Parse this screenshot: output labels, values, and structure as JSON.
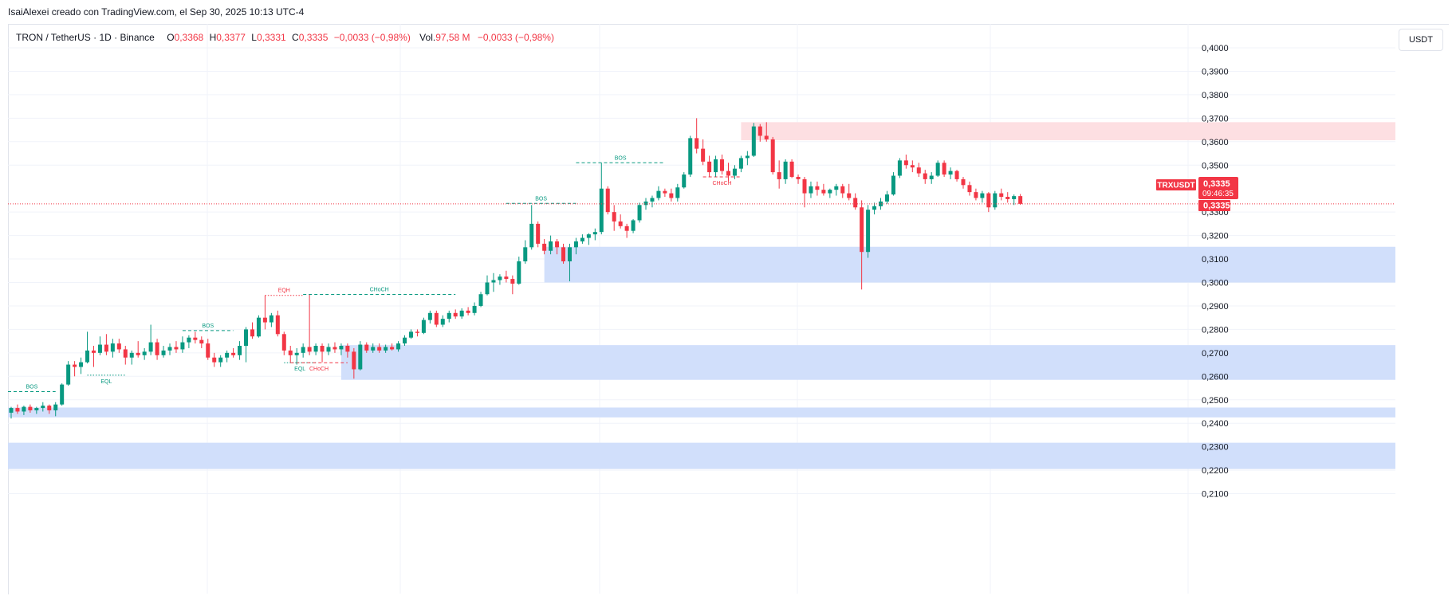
{
  "header": {
    "attribution": "IsaiAlexei creado con TradingView.com, el Sep 30, 2025 10:13 UTC-4"
  },
  "legend": {
    "symbol": "TRON / TetherUS · 1D · Binance",
    "o_label": "O",
    "o_value": "0,3368",
    "h_label": "H",
    "h_value": "0,3377",
    "l_label": "L",
    "l_value": "0,3331",
    "c_label": "C",
    "c_value": "0,3335",
    "change": "−0,0033 (−0,98%)",
    "vol_label": "Vol.",
    "vol_value": "97,58 M",
    "vol_change": "−0,0033 (−0,98%)"
  },
  "unit_label": "USDT",
  "price_tags": {
    "symbol": "TRXUSDT",
    "price": "0,3335",
    "countdown": "09:46:35",
    "last_price": "0,3335"
  },
  "colors": {
    "up": "#089981",
    "down": "#f23645",
    "demand_zone": "#d1dffb",
    "supply_zone": "#fddfe2",
    "grid": "#f0f3fa"
  },
  "chart_data": {
    "type": "candlestick",
    "symbol": "TRXUSDT",
    "interval": "1D",
    "y_ticks": [
      "0,4000",
      "0,3900",
      "0,3800",
      "0,3700",
      "0,3600",
      "0,3500",
      "0,3300",
      "0,3200",
      "0,3100",
      "0,3000",
      "0,2900",
      "0,2800",
      "0,2700",
      "0,2600",
      "0,2500",
      "0,2400",
      "0,2300",
      "0,2200",
      "0,2100"
    ],
    "ylim": [
      0.2065,
      0.4025
    ],
    "last_price": 0.3335,
    "zones": [
      {
        "kind": "supply",
        "top": 0.3683,
        "bottom": 0.3606,
        "from_index": 115
      },
      {
        "kind": "demand",
        "top": 0.3152,
        "bottom": 0.3,
        "from_index": 84
      },
      {
        "kind": "demand",
        "top": 0.2733,
        "bottom": 0.2585,
        "from_index": 52
      },
      {
        "kind": "demand",
        "top": 0.2467,
        "bottom": 0.2425,
        "from_index": 0
      },
      {
        "kind": "demand",
        "top": 0.2317,
        "bottom": 0.2205,
        "from_index": 0
      }
    ],
    "structures": [
      {
        "label": "BOS",
        "type": "bos",
        "price": 0.2535,
        "from_index": 0,
        "to_index": 7,
        "color": "#089981"
      },
      {
        "label": "EQL",
        "type": "eq",
        "price": 0.2605,
        "from_index": 12,
        "to_index": 18,
        "color": "#089981"
      },
      {
        "label": "BOS",
        "type": "bos",
        "price": 0.2795,
        "from_index": 27,
        "to_index": 35,
        "color": "#089981"
      },
      {
        "label": "EQH",
        "type": "eq",
        "price": 0.2945,
        "from_index": 40,
        "to_index": 46,
        "color": "#f23645"
      },
      {
        "label": "EQL",
        "type": "eq",
        "price": 0.2658,
        "from_index": 43,
        "to_index": 48,
        "color": "#089981"
      },
      {
        "label": "CHoCH",
        "type": "choch",
        "price": 0.2658,
        "from_index": 44,
        "to_index": 53,
        "color": "#f23645"
      },
      {
        "label": "CHoCH",
        "type": "choch",
        "price": 0.2949,
        "from_index": 46,
        "to_index": 70,
        "color": "#089981"
      },
      {
        "label": "BOS",
        "type": "bos",
        "price": 0.3337,
        "from_index": 78,
        "to_index": 89,
        "color": "#089981"
      },
      {
        "label": "BOS",
        "type": "bos",
        "price": 0.351,
        "from_index": 89,
        "to_index": 103,
        "color": "#089981"
      },
      {
        "label": "CHoCH",
        "type": "choch",
        "price": 0.345,
        "from_index": 109,
        "to_index": 115,
        "color": "#f23645"
      }
    ],
    "candles": [
      {
        "o": 0.2445,
        "h": 0.247,
        "l": 0.242,
        "c": 0.2465
      },
      {
        "o": 0.2465,
        "h": 0.248,
        "l": 0.244,
        "c": 0.245
      },
      {
        "o": 0.245,
        "h": 0.2475,
        "l": 0.2435,
        "c": 0.247
      },
      {
        "o": 0.247,
        "h": 0.248,
        "l": 0.2445,
        "c": 0.2455
      },
      {
        "o": 0.2455,
        "h": 0.247,
        "l": 0.244,
        "c": 0.2465
      },
      {
        "o": 0.2465,
        "h": 0.249,
        "l": 0.245,
        "c": 0.2475
      },
      {
        "o": 0.2475,
        "h": 0.248,
        "l": 0.244,
        "c": 0.2455
      },
      {
        "o": 0.2455,
        "h": 0.249,
        "l": 0.243,
        "c": 0.248
      },
      {
        "o": 0.248,
        "h": 0.257,
        "l": 0.2475,
        "c": 0.2565
      },
      {
        "o": 0.2565,
        "h": 0.2665,
        "l": 0.256,
        "c": 0.265
      },
      {
        "o": 0.265,
        "h": 0.2665,
        "l": 0.26,
        "c": 0.264
      },
      {
        "o": 0.264,
        "h": 0.268,
        "l": 0.261,
        "c": 0.266
      },
      {
        "o": 0.266,
        "h": 0.279,
        "l": 0.2655,
        "c": 0.271
      },
      {
        "o": 0.271,
        "h": 0.273,
        "l": 0.264,
        "c": 0.27
      },
      {
        "o": 0.27,
        "h": 0.277,
        "l": 0.269,
        "c": 0.2735
      },
      {
        "o": 0.2735,
        "h": 0.278,
        "l": 0.269,
        "c": 0.2705
      },
      {
        "o": 0.2705,
        "h": 0.276,
        "l": 0.268,
        "c": 0.274
      },
      {
        "o": 0.274,
        "h": 0.276,
        "l": 0.27,
        "c": 0.2715
      },
      {
        "o": 0.2715,
        "h": 0.273,
        "l": 0.265,
        "c": 0.268
      },
      {
        "o": 0.268,
        "h": 0.271,
        "l": 0.265,
        "c": 0.27
      },
      {
        "o": 0.27,
        "h": 0.275,
        "l": 0.268,
        "c": 0.269
      },
      {
        "o": 0.269,
        "h": 0.272,
        "l": 0.267,
        "c": 0.2705
      },
      {
        "o": 0.2705,
        "h": 0.282,
        "l": 0.269,
        "c": 0.2745
      },
      {
        "o": 0.2745,
        "h": 0.276,
        "l": 0.267,
        "c": 0.269
      },
      {
        "o": 0.269,
        "h": 0.273,
        "l": 0.268,
        "c": 0.271
      },
      {
        "o": 0.271,
        "h": 0.274,
        "l": 0.269,
        "c": 0.2725
      },
      {
        "o": 0.2725,
        "h": 0.275,
        "l": 0.27,
        "c": 0.2715
      },
      {
        "o": 0.2715,
        "h": 0.277,
        "l": 0.27,
        "c": 0.2745
      },
      {
        "o": 0.2745,
        "h": 0.2775,
        "l": 0.272,
        "c": 0.2765
      },
      {
        "o": 0.2765,
        "h": 0.279,
        "l": 0.274,
        "c": 0.2755
      },
      {
        "o": 0.2755,
        "h": 0.277,
        "l": 0.272,
        "c": 0.274
      },
      {
        "o": 0.274,
        "h": 0.276,
        "l": 0.267,
        "c": 0.268
      },
      {
        "o": 0.268,
        "h": 0.27,
        "l": 0.264,
        "c": 0.266
      },
      {
        "o": 0.266,
        "h": 0.269,
        "l": 0.264,
        "c": 0.268
      },
      {
        "o": 0.268,
        "h": 0.271,
        "l": 0.266,
        "c": 0.27
      },
      {
        "o": 0.27,
        "h": 0.272,
        "l": 0.268,
        "c": 0.269
      },
      {
        "o": 0.269,
        "h": 0.275,
        "l": 0.267,
        "c": 0.273
      },
      {
        "o": 0.273,
        "h": 0.281,
        "l": 0.266,
        "c": 0.28
      },
      {
        "o": 0.28,
        "h": 0.283,
        "l": 0.276,
        "c": 0.277
      },
      {
        "o": 0.277,
        "h": 0.286,
        "l": 0.2765,
        "c": 0.285
      },
      {
        "o": 0.285,
        "h": 0.2945,
        "l": 0.28,
        "c": 0.283
      },
      {
        "o": 0.283,
        "h": 0.287,
        "l": 0.281,
        "c": 0.286
      },
      {
        "o": 0.286,
        "h": 0.288,
        "l": 0.277,
        "c": 0.278
      },
      {
        "o": 0.278,
        "h": 0.279,
        "l": 0.269,
        "c": 0.271
      },
      {
        "o": 0.271,
        "h": 0.273,
        "l": 0.266,
        "c": 0.269
      },
      {
        "o": 0.269,
        "h": 0.272,
        "l": 0.265,
        "c": 0.27
      },
      {
        "o": 0.27,
        "h": 0.274,
        "l": 0.268,
        "c": 0.2725
      },
      {
        "o": 0.2725,
        "h": 0.2948,
        "l": 0.269,
        "c": 0.2705
      },
      {
        "o": 0.2705,
        "h": 0.274,
        "l": 0.269,
        "c": 0.273
      },
      {
        "o": 0.273,
        "h": 0.274,
        "l": 0.266,
        "c": 0.2705
      },
      {
        "o": 0.2705,
        "h": 0.274,
        "l": 0.269,
        "c": 0.2725
      },
      {
        "o": 0.2725,
        "h": 0.2745,
        "l": 0.27,
        "c": 0.2715
      },
      {
        "o": 0.2715,
        "h": 0.274,
        "l": 0.269,
        "c": 0.273
      },
      {
        "o": 0.273,
        "h": 0.274,
        "l": 0.268,
        "c": 0.2705
      },
      {
        "o": 0.2705,
        "h": 0.272,
        "l": 0.259,
        "c": 0.263
      },
      {
        "o": 0.263,
        "h": 0.275,
        "l": 0.2625,
        "c": 0.2735
      },
      {
        "o": 0.2735,
        "h": 0.2745,
        "l": 0.27,
        "c": 0.271
      },
      {
        "o": 0.271,
        "h": 0.274,
        "l": 0.27,
        "c": 0.2725
      },
      {
        "o": 0.2725,
        "h": 0.274,
        "l": 0.27,
        "c": 0.271
      },
      {
        "o": 0.271,
        "h": 0.2735,
        "l": 0.27,
        "c": 0.2725
      },
      {
        "o": 0.2725,
        "h": 0.274,
        "l": 0.271,
        "c": 0.2715
      },
      {
        "o": 0.2715,
        "h": 0.275,
        "l": 0.2705,
        "c": 0.274
      },
      {
        "o": 0.274,
        "h": 0.2775,
        "l": 0.273,
        "c": 0.2765
      },
      {
        "o": 0.2765,
        "h": 0.28,
        "l": 0.276,
        "c": 0.279
      },
      {
        "o": 0.279,
        "h": 0.28,
        "l": 0.277,
        "c": 0.2785
      },
      {
        "o": 0.2785,
        "h": 0.285,
        "l": 0.278,
        "c": 0.284
      },
      {
        "o": 0.284,
        "h": 0.288,
        "l": 0.2825,
        "c": 0.287
      },
      {
        "o": 0.287,
        "h": 0.288,
        "l": 0.281,
        "c": 0.282
      },
      {
        "o": 0.282,
        "h": 0.286,
        "l": 0.281,
        "c": 0.2845
      },
      {
        "o": 0.2845,
        "h": 0.288,
        "l": 0.283,
        "c": 0.287
      },
      {
        "o": 0.287,
        "h": 0.2885,
        "l": 0.2845,
        "c": 0.2855
      },
      {
        "o": 0.2855,
        "h": 0.289,
        "l": 0.2845,
        "c": 0.288
      },
      {
        "o": 0.288,
        "h": 0.2895,
        "l": 0.286,
        "c": 0.287
      },
      {
        "o": 0.287,
        "h": 0.2915,
        "l": 0.286,
        "c": 0.29
      },
      {
        "o": 0.29,
        "h": 0.296,
        "l": 0.2895,
        "c": 0.295
      },
      {
        "o": 0.295,
        "h": 0.303,
        "l": 0.2945,
        "c": 0.3
      },
      {
        "o": 0.3,
        "h": 0.304,
        "l": 0.296,
        "c": 0.301
      },
      {
        "o": 0.301,
        "h": 0.3035,
        "l": 0.299,
        "c": 0.3025
      },
      {
        "o": 0.3025,
        "h": 0.305,
        "l": 0.3,
        "c": 0.3015
      },
      {
        "o": 0.3015,
        "h": 0.303,
        "l": 0.295,
        "c": 0.2995
      },
      {
        "o": 0.2995,
        "h": 0.311,
        "l": 0.299,
        "c": 0.309
      },
      {
        "o": 0.309,
        "h": 0.318,
        "l": 0.308,
        "c": 0.315
      },
      {
        "o": 0.315,
        "h": 0.333,
        "l": 0.314,
        "c": 0.325
      },
      {
        "o": 0.325,
        "h": 0.326,
        "l": 0.315,
        "c": 0.3165
      },
      {
        "o": 0.3165,
        "h": 0.3185,
        "l": 0.312,
        "c": 0.3135
      },
      {
        "o": 0.3135,
        "h": 0.32,
        "l": 0.312,
        "c": 0.3175
      },
      {
        "o": 0.3175,
        "h": 0.3185,
        "l": 0.312,
        "c": 0.315
      },
      {
        "o": 0.315,
        "h": 0.3165,
        "l": 0.308,
        "c": 0.309
      },
      {
        "o": 0.309,
        "h": 0.3165,
        "l": 0.3005,
        "c": 0.315
      },
      {
        "o": 0.315,
        "h": 0.319,
        "l": 0.312,
        "c": 0.3175
      },
      {
        "o": 0.3175,
        "h": 0.3205,
        "l": 0.3165,
        "c": 0.319
      },
      {
        "o": 0.319,
        "h": 0.321,
        "l": 0.316,
        "c": 0.3205
      },
      {
        "o": 0.3205,
        "h": 0.323,
        "l": 0.318,
        "c": 0.3215
      },
      {
        "o": 0.3215,
        "h": 0.351,
        "l": 0.3205,
        "c": 0.34
      },
      {
        "o": 0.34,
        "h": 0.341,
        "l": 0.329,
        "c": 0.33
      },
      {
        "o": 0.33,
        "h": 0.333,
        "l": 0.322,
        "c": 0.326
      },
      {
        "o": 0.326,
        "h": 0.329,
        "l": 0.323,
        "c": 0.324
      },
      {
        "o": 0.324,
        "h": 0.325,
        "l": 0.319,
        "c": 0.322
      },
      {
        "o": 0.322,
        "h": 0.327,
        "l": 0.321,
        "c": 0.3265
      },
      {
        "o": 0.3265,
        "h": 0.334,
        "l": 0.3255,
        "c": 0.333
      },
      {
        "o": 0.333,
        "h": 0.336,
        "l": 0.331,
        "c": 0.3345
      },
      {
        "o": 0.3345,
        "h": 0.337,
        "l": 0.332,
        "c": 0.336
      },
      {
        "o": 0.336,
        "h": 0.341,
        "l": 0.335,
        "c": 0.339
      },
      {
        "o": 0.339,
        "h": 0.34,
        "l": 0.3365,
        "c": 0.338
      },
      {
        "o": 0.338,
        "h": 0.34,
        "l": 0.3345,
        "c": 0.336
      },
      {
        "o": 0.336,
        "h": 0.342,
        "l": 0.3345,
        "c": 0.3405
      },
      {
        "o": 0.3405,
        "h": 0.347,
        "l": 0.34,
        "c": 0.346
      },
      {
        "o": 0.346,
        "h": 0.3625,
        "l": 0.345,
        "c": 0.3615
      },
      {
        "o": 0.3615,
        "h": 0.37,
        "l": 0.355,
        "c": 0.357
      },
      {
        "o": 0.357,
        "h": 0.361,
        "l": 0.35,
        "c": 0.3515
      },
      {
        "o": 0.3515,
        "h": 0.354,
        "l": 0.345,
        "c": 0.347
      },
      {
        "o": 0.347,
        "h": 0.354,
        "l": 0.345,
        "c": 0.3525
      },
      {
        "o": 0.3525,
        "h": 0.3545,
        "l": 0.346,
        "c": 0.3475
      },
      {
        "o": 0.3475,
        "h": 0.351,
        "l": 0.343,
        "c": 0.3455
      },
      {
        "o": 0.3455,
        "h": 0.35,
        "l": 0.344,
        "c": 0.3485
      },
      {
        "o": 0.3485,
        "h": 0.354,
        "l": 0.347,
        "c": 0.353
      },
      {
        "o": 0.353,
        "h": 0.356,
        "l": 0.35,
        "c": 0.354
      },
      {
        "o": 0.354,
        "h": 0.368,
        "l": 0.3535,
        "c": 0.3665
      },
      {
        "o": 0.3665,
        "h": 0.3675,
        "l": 0.36,
        "c": 0.3625
      },
      {
        "o": 0.3625,
        "h": 0.3683,
        "l": 0.36,
        "c": 0.361
      },
      {
        "o": 0.361,
        "h": 0.362,
        "l": 0.346,
        "c": 0.347
      },
      {
        "o": 0.347,
        "h": 0.352,
        "l": 0.34,
        "c": 0.344
      },
      {
        "o": 0.344,
        "h": 0.3525,
        "l": 0.342,
        "c": 0.3515
      },
      {
        "o": 0.3515,
        "h": 0.3525,
        "l": 0.3445,
        "c": 0.345
      },
      {
        "o": 0.345,
        "h": 0.346,
        "l": 0.342,
        "c": 0.344
      },
      {
        "o": 0.344,
        "h": 0.345,
        "l": 0.332,
        "c": 0.338
      },
      {
        "o": 0.338,
        "h": 0.343,
        "l": 0.336,
        "c": 0.341
      },
      {
        "o": 0.341,
        "h": 0.343,
        "l": 0.337,
        "c": 0.3395
      },
      {
        "o": 0.3395,
        "h": 0.342,
        "l": 0.337,
        "c": 0.338
      },
      {
        "o": 0.338,
        "h": 0.34,
        "l": 0.336,
        "c": 0.3395
      },
      {
        "o": 0.3395,
        "h": 0.342,
        "l": 0.337,
        "c": 0.341
      },
      {
        "o": 0.341,
        "h": 0.342,
        "l": 0.336,
        "c": 0.338
      },
      {
        "o": 0.338,
        "h": 0.342,
        "l": 0.335,
        "c": 0.336
      },
      {
        "o": 0.336,
        "h": 0.338,
        "l": 0.331,
        "c": 0.332
      },
      {
        "o": 0.332,
        "h": 0.335,
        "l": 0.297,
        "c": 0.313
      },
      {
        "o": 0.313,
        "h": 0.333,
        "l": 0.3105,
        "c": 0.331
      },
      {
        "o": 0.331,
        "h": 0.334,
        "l": 0.329,
        "c": 0.3325
      },
      {
        "o": 0.3325,
        "h": 0.336,
        "l": 0.331,
        "c": 0.3345
      },
      {
        "o": 0.3345,
        "h": 0.339,
        "l": 0.3335,
        "c": 0.3375
      },
      {
        "o": 0.3375,
        "h": 0.347,
        "l": 0.337,
        "c": 0.3455
      },
      {
        "o": 0.3455,
        "h": 0.353,
        "l": 0.3445,
        "c": 0.352
      },
      {
        "o": 0.352,
        "h": 0.3545,
        "l": 0.3485,
        "c": 0.35
      },
      {
        "o": 0.35,
        "h": 0.352,
        "l": 0.347,
        "c": 0.349
      },
      {
        "o": 0.349,
        "h": 0.351,
        "l": 0.345,
        "c": 0.3465
      },
      {
        "o": 0.3465,
        "h": 0.348,
        "l": 0.342,
        "c": 0.344
      },
      {
        "o": 0.344,
        "h": 0.347,
        "l": 0.342,
        "c": 0.3455
      },
      {
        "o": 0.3455,
        "h": 0.352,
        "l": 0.345,
        "c": 0.351
      },
      {
        "o": 0.351,
        "h": 0.352,
        "l": 0.345,
        "c": 0.346
      },
      {
        "o": 0.346,
        "h": 0.349,
        "l": 0.344,
        "c": 0.3475
      },
      {
        "o": 0.3475,
        "h": 0.348,
        "l": 0.343,
        "c": 0.344
      },
      {
        "o": 0.344,
        "h": 0.345,
        "l": 0.34,
        "c": 0.3415
      },
      {
        "o": 0.3415,
        "h": 0.343,
        "l": 0.337,
        "c": 0.3385
      },
      {
        "o": 0.3385,
        "h": 0.34,
        "l": 0.335,
        "c": 0.336
      },
      {
        "o": 0.336,
        "h": 0.339,
        "l": 0.334,
        "c": 0.338
      },
      {
        "o": 0.338,
        "h": 0.3385,
        "l": 0.33,
        "c": 0.332
      },
      {
        "o": 0.332,
        "h": 0.339,
        "l": 0.331,
        "c": 0.338
      },
      {
        "o": 0.338,
        "h": 0.34,
        "l": 0.335,
        "c": 0.3365
      },
      {
        "o": 0.3365,
        "h": 0.3385,
        "l": 0.334,
        "c": 0.3355
      },
      {
        "o": 0.3355,
        "h": 0.3375,
        "l": 0.333,
        "c": 0.3368
      },
      {
        "o": 0.3368,
        "h": 0.3377,
        "l": 0.3331,
        "c": 0.3335
      }
    ]
  }
}
